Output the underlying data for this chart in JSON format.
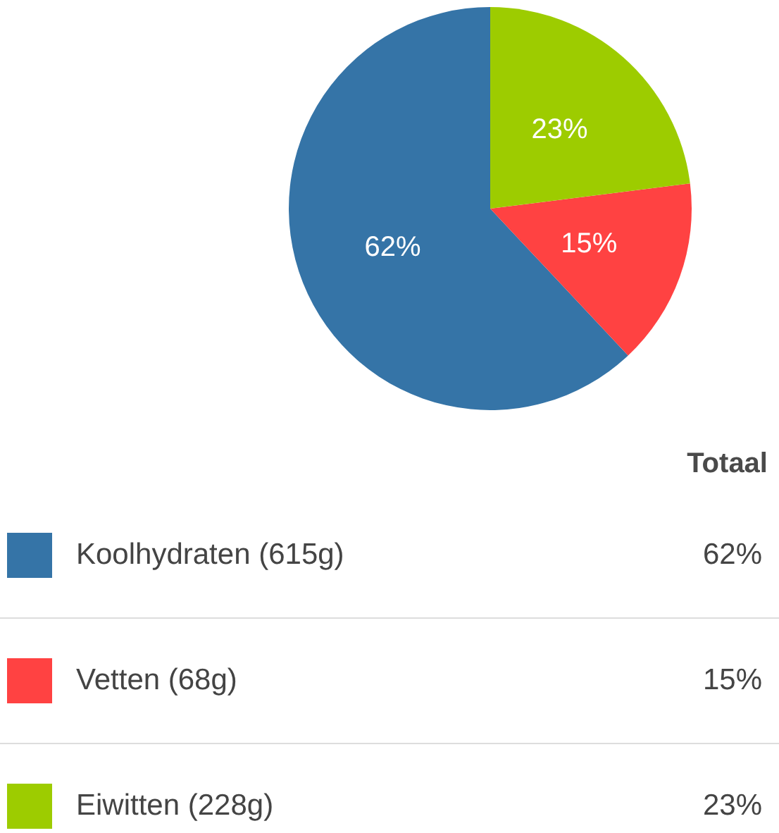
{
  "chart_data": {
    "type": "pie",
    "categories": [
      "Koolhydraten (615g)",
      "Vetten (68g)",
      "Eiwitten (228g)"
    ],
    "values": [
      62,
      15,
      23
    ],
    "colors": [
      "#3574a7",
      "#ff4242",
      "#9dcc00"
    ],
    "value_labels": [
      "62%",
      "15%",
      "23%"
    ],
    "legend_title": "Totaal",
    "legend": "bottom"
  }
}
